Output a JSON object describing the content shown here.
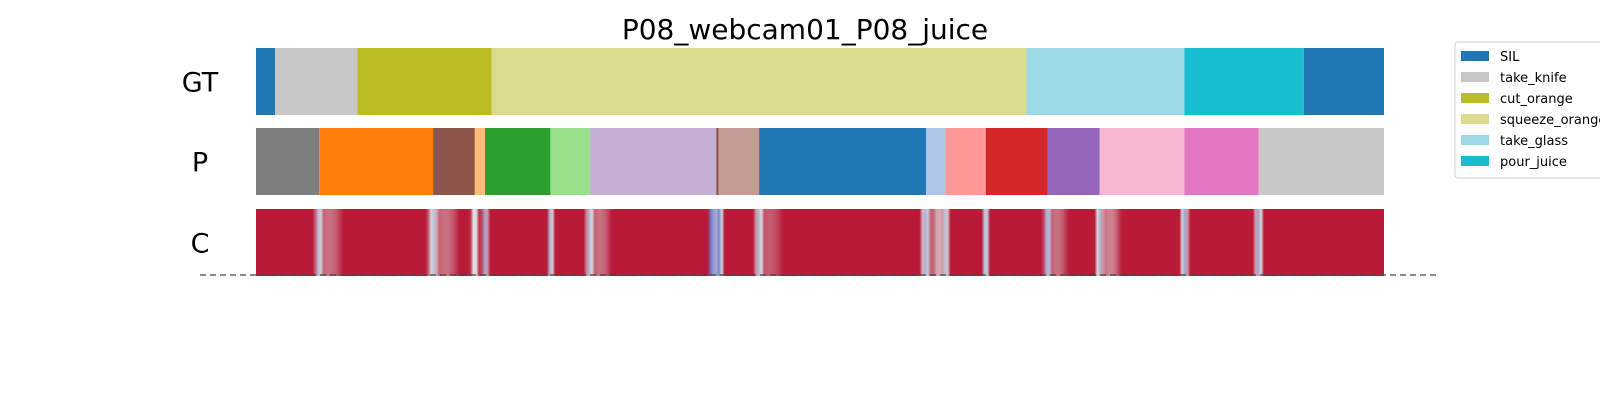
{
  "chart_data": {
    "type": "heatmap",
    "title": "P08_webcam01_P08_juice",
    "x_range": [
      0,
      1
    ],
    "colors": {
      "SIL": "#1f77b4",
      "take_knife": "#c7c7c7",
      "cut_orange": "#bcbd22",
      "squeeze_orange": "#dbdb8d",
      "take_glass": "#9edae5",
      "pour_juice": "#17becf",
      "class_gray": "#7f7f7f",
      "class_orange": "#ff7f0e",
      "class_brown": "#8c564b",
      "class_lightorange": "#ffbb78",
      "class_green": "#2ca02c",
      "class_lightgreen": "#98df8a",
      "class_lightpurple": "#c5b0d5",
      "class_lightbrown": "#c49c94",
      "class_lightblue": "#aec7e8",
      "class_lightred": "#ff9896",
      "class_red": "#d62728",
      "class_purple": "#9467bd",
      "class_lightpink": "#f7b6d2",
      "class_pink": "#e377c2",
      "confidence_high": "#b40426",
      "confidence_low": "#3b4cc0"
    },
    "legend": {
      "placement": "top-right",
      "entries": [
        "SIL",
        "take_knife",
        "cut_orange",
        "squeeze_orange",
        "take_glass",
        "pour_juice"
      ]
    },
    "rows": [
      {
        "label": "GT",
        "segments": [
          {
            "label": "SIL",
            "start": 0.0,
            "end": 0.017
          },
          {
            "label": "take_knife",
            "start": 0.017,
            "end": 0.09
          },
          {
            "label": "cut_orange",
            "start": 0.09,
            "end": 0.209
          },
          {
            "label": "squeeze_orange",
            "start": 0.209,
            "end": 0.683
          },
          {
            "label": "take_glass",
            "start": 0.683,
            "end": 0.823
          },
          {
            "label": "pour_juice",
            "start": 0.823,
            "end": 0.929
          },
          {
            "label": "SIL",
            "start": 0.929,
            "end": 1.0
          }
        ]
      },
      {
        "label": "P",
        "segments": [
          {
            "label": "class_gray",
            "start": 0.0,
            "end": 0.056
          },
          {
            "label": "class_orange",
            "start": 0.056,
            "end": 0.157
          },
          {
            "label": "class_brown",
            "start": 0.157,
            "end": 0.194
          },
          {
            "label": "class_lightorange",
            "start": 0.194,
            "end": 0.203
          },
          {
            "label": "class_green",
            "start": 0.203,
            "end": 0.261
          },
          {
            "label": "class_lightgreen",
            "start": 0.261,
            "end": 0.296
          },
          {
            "label": "class_lightpurple",
            "start": 0.296,
            "end": 0.408
          },
          {
            "label": "class_brown",
            "start": 0.408,
            "end": 0.41
          },
          {
            "label": "class_lightbrown",
            "start": 0.41,
            "end": 0.446
          },
          {
            "label": "SIL",
            "start": 0.446,
            "end": 0.594
          },
          {
            "label": "class_lightblue",
            "start": 0.594,
            "end": 0.611
          },
          {
            "label": "class_lightred",
            "start": 0.611,
            "end": 0.647
          },
          {
            "label": "class_red",
            "start": 0.647,
            "end": 0.702
          },
          {
            "label": "class_purple",
            "start": 0.702,
            "end": 0.748
          },
          {
            "label": "class_lightpink",
            "start": 0.748,
            "end": 0.823
          },
          {
            "label": "class_pink",
            "start": 0.823,
            "end": 0.889
          },
          {
            "label": "take_knife",
            "start": 0.889,
            "end": 1.0
          }
        ]
      },
      {
        "label": "C",
        "base_value": 0.95,
        "dips": [
          {
            "at": 0.056,
            "value": 0.35,
            "width": 0.004
          },
          {
            "at": 0.065,
            "value": 0.75,
            "width": 0.012
          },
          {
            "at": 0.157,
            "value": 0.4,
            "width": 0.005
          },
          {
            "at": 0.168,
            "value": 0.75,
            "width": 0.012
          },
          {
            "at": 0.194,
            "value": 0.45,
            "width": 0.004
          },
          {
            "at": 0.203,
            "value": 0.3,
            "width": 0.003
          },
          {
            "at": 0.261,
            "value": 0.3,
            "width": 0.003
          },
          {
            "at": 0.296,
            "value": 0.35,
            "width": 0.004
          },
          {
            "at": 0.305,
            "value": 0.75,
            "width": 0.01
          },
          {
            "at": 0.404,
            "value": 0.05,
            "width": 0.003
          },
          {
            "at": 0.41,
            "value": 0.2,
            "width": 0.005
          },
          {
            "at": 0.446,
            "value": 0.35,
            "width": 0.004
          },
          {
            "at": 0.455,
            "value": 0.8,
            "width": 0.012
          },
          {
            "at": 0.594,
            "value": 0.35,
            "width": 0.005
          },
          {
            "at": 0.605,
            "value": 0.6,
            "width": 0.006
          },
          {
            "at": 0.611,
            "value": 0.4,
            "width": 0.004
          },
          {
            "at": 0.647,
            "value": 0.3,
            "width": 0.003
          },
          {
            "at": 0.702,
            "value": 0.3,
            "width": 0.004
          },
          {
            "at": 0.71,
            "value": 0.75,
            "width": 0.01
          },
          {
            "at": 0.748,
            "value": 0.35,
            "width": 0.004
          },
          {
            "at": 0.757,
            "value": 0.7,
            "width": 0.01
          },
          {
            "at": 0.823,
            "value": 0.3,
            "width": 0.004
          },
          {
            "at": 0.889,
            "value": 0.3,
            "width": 0.004
          }
        ]
      }
    ]
  }
}
